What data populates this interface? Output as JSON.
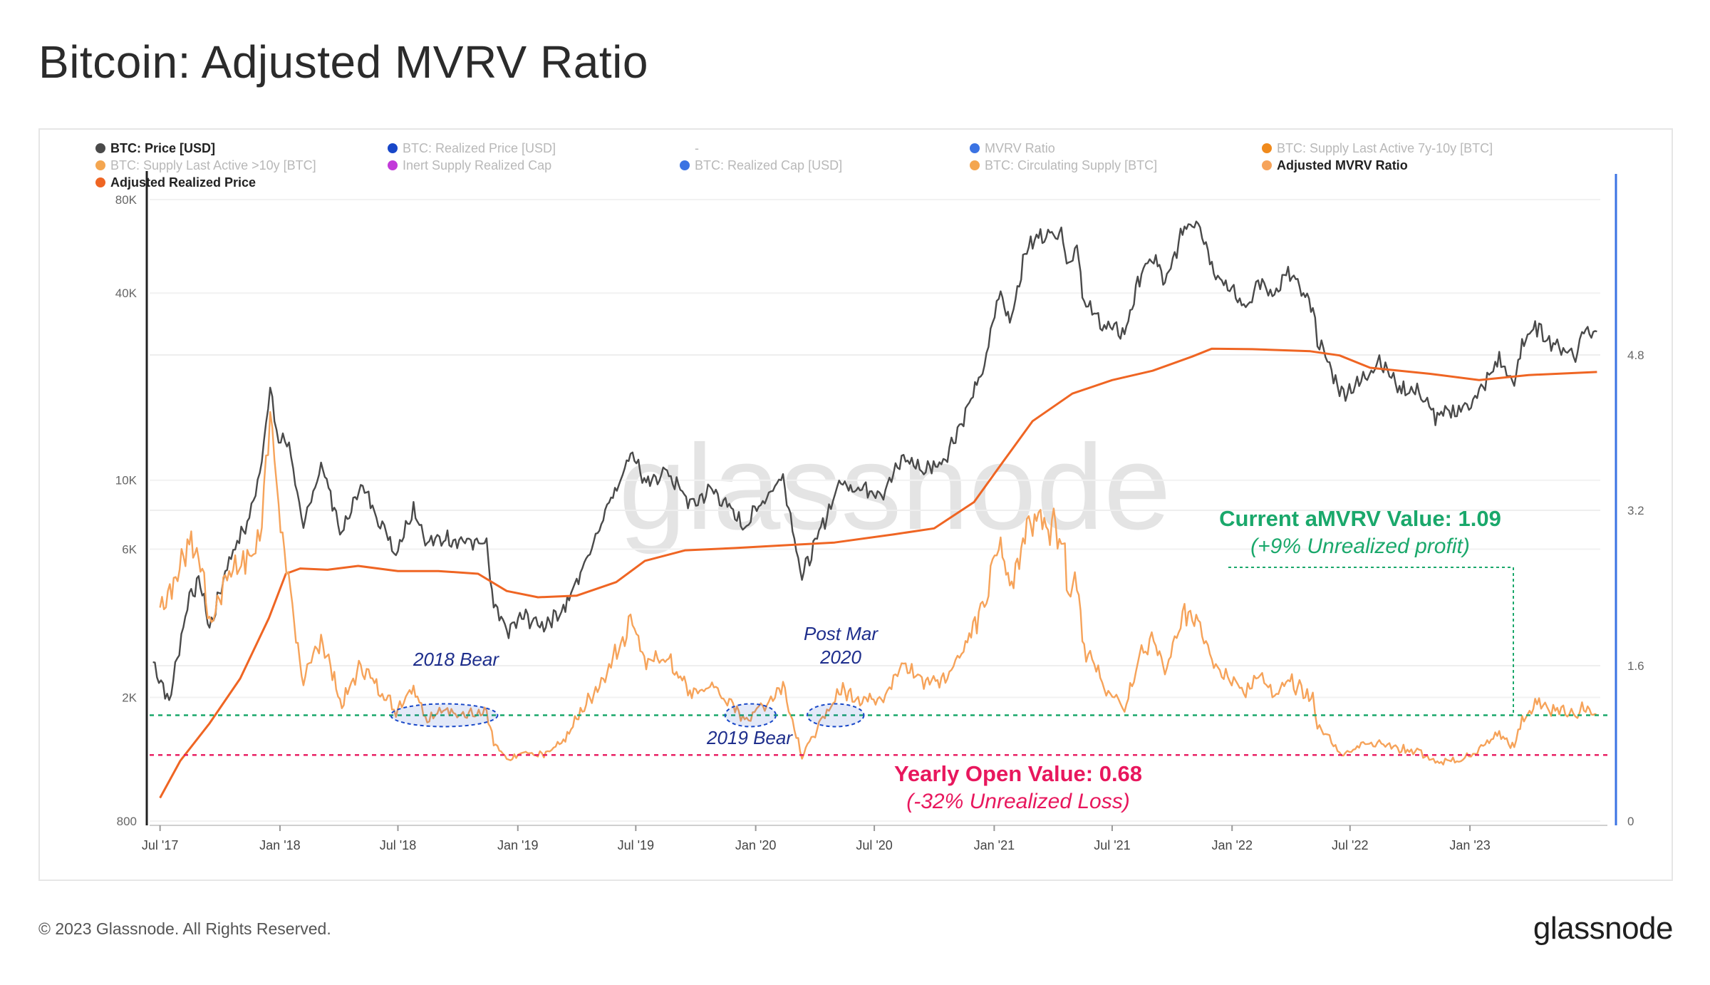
{
  "title": "Bitcoin: Adjusted MVRV Ratio",
  "footer": {
    "copyright": "© 2023 Glassnode. All Rights Reserved.",
    "logo": "glassnode"
  },
  "watermark": "glassnode",
  "chart_data": {
    "type": "line",
    "title": "Bitcoin: Adjusted MVRV Ratio",
    "legend": [
      {
        "label": "BTC: Price [USD]",
        "color": "#4a4a4a",
        "active": true
      },
      {
        "label": "BTC: Realized Price [USD]",
        "color": "#1847c8",
        "active": false
      },
      {
        "label": "-",
        "color": "",
        "active": false
      },
      {
        "label": "MVRV Ratio",
        "color": "#3b73e3",
        "active": false
      },
      {
        "label": "BTC: Supply Last Active 7y-10y [BTC]",
        "color": "#f08a1c",
        "active": false
      },
      {
        "label": "BTC: Supply Last Active >10y [BTC]",
        "color": "#f4a650",
        "active": false
      },
      {
        "label": "Inert Supply Realized Cap",
        "color": "#c23ad9",
        "active": false
      },
      {
        "label": "BTC: Realized Cap [USD]",
        "color": "#3b73e3",
        "active": false
      },
      {
        "label": "BTC: Circulating Supply [BTC]",
        "color": "#f4a650",
        "active": false
      },
      {
        "label": "Adjusted MVRV Ratio",
        "color": "#f6a35a",
        "active": true
      },
      {
        "label": "Adjusted Realized Price",
        "color": "#ef6523",
        "active": true
      }
    ],
    "x_ticks": [
      "Jul '17",
      "Jan '18",
      "Jul '18",
      "Jan '19",
      "Jul '19",
      "Jan '20",
      "Jul '20",
      "Jan '21",
      "Jul '21",
      "Jan '22",
      "Jul '22",
      "Jan '23"
    ],
    "y_left": {
      "scale": "log",
      "ticks": [
        "800",
        "2K",
        "6K",
        "10K",
        "40K",
        "80K"
      ],
      "ylim": [
        800,
        80000
      ]
    },
    "y_right": {
      "scale": "linear",
      "ticks": [
        "0",
        "1.6",
        "3.2",
        "4.8"
      ],
      "ylim": [
        0,
        6.4
      ]
    },
    "xlim": [
      "2017-06-15",
      "2023-07-20"
    ],
    "series": [
      {
        "name": "BTC: Price [USD]",
        "axis": "left",
        "color": "#4a4a4a",
        "points": [
          [
            "2017-06-20",
            2600
          ],
          [
            "2017-07-15",
            1950
          ],
          [
            "2017-08-15",
            4300
          ],
          [
            "2017-09-01",
            4700
          ],
          [
            "2017-09-15",
            3300
          ],
          [
            "2017-10-15",
            5600
          ],
          [
            "2017-11-15",
            7500
          ],
          [
            "2017-12-01",
            10800
          ],
          [
            "2017-12-17",
            19200
          ],
          [
            "2017-12-30",
            13500
          ],
          [
            "2018-01-15",
            13200
          ],
          [
            "2018-02-06",
            6900
          ],
          [
            "2018-03-05",
            11400
          ],
          [
            "2018-04-06",
            6700
          ],
          [
            "2018-05-05",
            9700
          ],
          [
            "2018-06-28",
            5900
          ],
          [
            "2018-07-25",
            8200
          ],
          [
            "2018-08-15",
            6300
          ],
          [
            "2018-09-15",
            6500
          ],
          [
            "2018-10-15",
            6400
          ],
          [
            "2018-11-14",
            6100
          ],
          [
            "2018-11-25",
            3900
          ],
          [
            "2018-12-15",
            3250
          ],
          [
            "2019-01-10",
            3650
          ],
          [
            "2019-02-07",
            3400
          ],
          [
            "2019-03-15",
            3900
          ],
          [
            "2019-04-10",
            5200
          ],
          [
            "2019-05-15",
            7900
          ],
          [
            "2019-06-26",
            12500
          ],
          [
            "2019-07-17",
            9500
          ],
          [
            "2019-08-15",
            10800
          ],
          [
            "2019-09-25",
            8300
          ],
          [
            "2019-10-26",
            9400
          ],
          [
            "2019-12-15",
            7100
          ],
          [
            "2020-01-15",
            8800
          ],
          [
            "2020-02-12",
            10300
          ],
          [
            "2020-03-12",
            4900
          ],
          [
            "2020-04-10",
            6900
          ],
          [
            "2020-05-08",
            9800
          ],
          [
            "2020-06-15",
            9400
          ],
          [
            "2020-07-15",
            9200
          ],
          [
            "2020-08-15",
            11800
          ],
          [
            "2020-09-15",
            10800
          ],
          [
            "2020-10-15",
            11500
          ],
          [
            "2020-11-15",
            16000
          ],
          [
            "2020-12-17",
            23000
          ],
          [
            "2021-01-08",
            40500
          ],
          [
            "2021-01-25",
            32500
          ],
          [
            "2021-02-20",
            56000
          ],
          [
            "2021-03-13",
            61000
          ],
          [
            "2021-04-14",
            63500
          ],
          [
            "2021-04-25",
            49000
          ],
          [
            "2021-05-08",
            58000
          ],
          [
            "2021-05-19",
            37000
          ],
          [
            "2021-06-22",
            31000
          ],
          [
            "2021-07-20",
            29800
          ],
          [
            "2021-08-15",
            47000
          ],
          [
            "2021-09-06",
            52000
          ],
          [
            "2021-09-20",
            42000
          ],
          [
            "2021-10-20",
            66000
          ],
          [
            "2021-11-10",
            68500
          ],
          [
            "2021-12-04",
            48000
          ],
          [
            "2022-01-22",
            35500
          ],
          [
            "2022-02-10",
            44000
          ],
          [
            "2022-03-07",
            38000
          ],
          [
            "2022-03-28",
            47500
          ],
          [
            "2022-05-05",
            36000
          ],
          [
            "2022-05-12",
            28500
          ],
          [
            "2022-06-18",
            19000
          ],
          [
            "2022-07-15",
            20500
          ],
          [
            "2022-08-15",
            24400
          ],
          [
            "2022-09-15",
            19800
          ],
          [
            "2022-10-15",
            19200
          ],
          [
            "2022-11-09",
            16000
          ],
          [
            "2022-12-15",
            16800
          ],
          [
            "2023-01-12",
            18500
          ],
          [
            "2023-02-15",
            24500
          ],
          [
            "2023-03-10",
            20000
          ],
          [
            "2023-03-22",
            28000
          ],
          [
            "2023-04-14",
            30800
          ],
          [
            "2023-05-15",
            26800
          ],
          [
            "2023-06-15",
            25500
          ],
          [
            "2023-06-22",
            30300
          ],
          [
            "2023-07-15",
            30100
          ]
        ]
      },
      {
        "name": "Adjusted Realized Price",
        "axis": "left",
        "color": "#ef6523",
        "points": [
          [
            "2017-07-01",
            950
          ],
          [
            "2017-08-01",
            1250
          ],
          [
            "2017-09-15",
            1650
          ],
          [
            "2017-11-01",
            2300
          ],
          [
            "2017-12-15",
            3600
          ],
          [
            "2018-01-10",
            5000
          ],
          [
            "2018-02-01",
            5200
          ],
          [
            "2018-03-15",
            5150
          ],
          [
            "2018-05-01",
            5300
          ],
          [
            "2018-07-01",
            5100
          ],
          [
            "2018-09-01",
            5100
          ],
          [
            "2018-11-01",
            5000
          ],
          [
            "2018-12-15",
            4400
          ],
          [
            "2019-02-01",
            4200
          ],
          [
            "2019-04-01",
            4250
          ],
          [
            "2019-06-01",
            4700
          ],
          [
            "2019-07-15",
            5500
          ],
          [
            "2019-09-15",
            5950
          ],
          [
            "2019-12-01",
            6050
          ],
          [
            "2020-03-01",
            6200
          ],
          [
            "2020-05-01",
            6300
          ],
          [
            "2020-08-01",
            6700
          ],
          [
            "2020-10-01",
            7000
          ],
          [
            "2020-12-01",
            8500
          ],
          [
            "2021-01-15",
            11500
          ],
          [
            "2021-03-01",
            15500
          ],
          [
            "2021-05-01",
            19000
          ],
          [
            "2021-07-01",
            21000
          ],
          [
            "2021-09-01",
            22500
          ],
          [
            "2021-11-01",
            25000
          ],
          [
            "2021-12-01",
            26500
          ],
          [
            "2022-02-01",
            26400
          ],
          [
            "2022-05-01",
            26000
          ],
          [
            "2022-06-15",
            25200
          ],
          [
            "2022-08-01",
            23000
          ],
          [
            "2022-11-01",
            22000
          ],
          [
            "2023-01-15",
            21000
          ],
          [
            "2023-04-01",
            21800
          ],
          [
            "2023-07-15",
            22300
          ]
        ]
      },
      {
        "name": "Adjusted MVRV Ratio",
        "axis": "right",
        "color": "#f6a35a",
        "points": [
          [
            "2017-07-01",
            2.2
          ],
          [
            "2017-07-25",
            2.5
          ],
          [
            "2017-08-15",
            2.9
          ],
          [
            "2017-09-01",
            2.7
          ],
          [
            "2017-09-15",
            2.0
          ],
          [
            "2017-10-15",
            2.6
          ],
          [
            "2017-11-15",
            2.7
          ],
          [
            "2017-12-01",
            2.9
          ],
          [
            "2017-12-17",
            4.3
          ],
          [
            "2017-12-30",
            3.2
          ],
          [
            "2018-01-20",
            2.2
          ],
          [
            "2018-02-06",
            1.4
          ],
          [
            "2018-03-05",
            1.9
          ],
          [
            "2018-04-06",
            1.2
          ],
          [
            "2018-05-05",
            1.6
          ],
          [
            "2018-06-28",
            1.15
          ],
          [
            "2018-07-25",
            1.4
          ],
          [
            "2018-08-15",
            1.05
          ],
          [
            "2018-09-15",
            1.15
          ],
          [
            "2018-10-15",
            1.1
          ],
          [
            "2018-11-14",
            1.1
          ],
          [
            "2018-11-25",
            0.8
          ],
          [
            "2018-12-15",
            0.62
          ],
          [
            "2019-01-10",
            0.7
          ],
          [
            "2019-02-07",
            0.68
          ],
          [
            "2019-03-15",
            0.85
          ],
          [
            "2019-04-10",
            1.15
          ],
          [
            "2019-05-15",
            1.5
          ],
          [
            "2019-06-26",
            2.1
          ],
          [
            "2019-07-17",
            1.6
          ],
          [
            "2019-08-15",
            1.7
          ],
          [
            "2019-09-25",
            1.3
          ],
          [
            "2019-10-26",
            1.4
          ],
          [
            "2019-12-15",
            1.05
          ],
          [
            "2020-01-15",
            1.2
          ],
          [
            "2020-02-12",
            1.4
          ],
          [
            "2020-03-12",
            0.68
          ],
          [
            "2020-04-10",
            1.0
          ],
          [
            "2020-05-08",
            1.35
          ],
          [
            "2020-06-15",
            1.25
          ],
          [
            "2020-07-15",
            1.3
          ],
          [
            "2020-08-15",
            1.6
          ],
          [
            "2020-09-15",
            1.45
          ],
          [
            "2020-10-15",
            1.45
          ],
          [
            "2020-11-15",
            1.8
          ],
          [
            "2020-12-17",
            2.2
          ],
          [
            "2021-01-08",
            2.9
          ],
          [
            "2021-01-25",
            2.4
          ],
          [
            "2021-02-20",
            3.05
          ],
          [
            "2021-03-13",
            3.1
          ],
          [
            "2021-04-14",
            3.0
          ],
          [
            "2021-04-25",
            2.4
          ],
          [
            "2021-05-08",
            2.5
          ],
          [
            "2021-05-19",
            1.8
          ],
          [
            "2021-06-22",
            1.35
          ],
          [
            "2021-07-20",
            1.15
          ],
          [
            "2021-08-15",
            1.75
          ],
          [
            "2021-09-06",
            1.85
          ],
          [
            "2021-09-20",
            1.5
          ],
          [
            "2021-10-20",
            2.15
          ],
          [
            "2021-11-10",
            2.1
          ],
          [
            "2021-12-04",
            1.65
          ],
          [
            "2022-01-22",
            1.3
          ],
          [
            "2022-02-10",
            1.55
          ],
          [
            "2022-03-07",
            1.25
          ],
          [
            "2022-03-28",
            1.45
          ],
          [
            "2022-05-05",
            1.25
          ],
          [
            "2022-05-12",
            1.0
          ],
          [
            "2022-06-18",
            0.68
          ],
          [
            "2022-07-15",
            0.78
          ],
          [
            "2022-08-15",
            0.82
          ],
          [
            "2022-09-15",
            0.74
          ],
          [
            "2022-10-15",
            0.72
          ],
          [
            "2022-11-09",
            0.6
          ],
          [
            "2022-12-15",
            0.62
          ],
          [
            "2023-01-12",
            0.72
          ],
          [
            "2023-02-15",
            0.9
          ],
          [
            "2023-03-10",
            0.75
          ],
          [
            "2023-03-22",
            1.05
          ],
          [
            "2023-04-14",
            1.2
          ],
          [
            "2023-05-15",
            1.15
          ],
          [
            "2023-06-15",
            1.1
          ],
          [
            "2023-06-22",
            1.18
          ],
          [
            "2023-07-15",
            1.09
          ]
        ]
      }
    ],
    "reference_lines": [
      {
        "name": "current",
        "axis": "right",
        "value": 1.09,
        "color": "#1aa86b"
      },
      {
        "name": "yearly-open",
        "axis": "right",
        "value": 0.68,
        "color": "#e8175d"
      }
    ],
    "annotations": {
      "current_title": "Current aMVRV Value: 1.09",
      "current_sub": "(+9% Unrealized profit)",
      "yearly_title": "Yearly Open Value: 0.68",
      "yearly_sub": "(-32% Unrealized Loss)",
      "bear_2018": "2018 Bear",
      "bear_2019": "2019 Bear",
      "post_mar_line1": "Post Mar",
      "post_mar_line2": "2020",
      "ellipses": [
        {
          "name": "ellipse-2018-bear",
          "from": "2018-06-20",
          "to": "2018-12-01"
        },
        {
          "name": "ellipse-2019-bear",
          "from": "2019-11-15",
          "to": "2020-02-01"
        },
        {
          "name": "ellipse-post-mar-2020",
          "from": "2020-03-20",
          "to": "2020-06-15"
        }
      ]
    },
    "grid": true,
    "legend_position": "top"
  }
}
